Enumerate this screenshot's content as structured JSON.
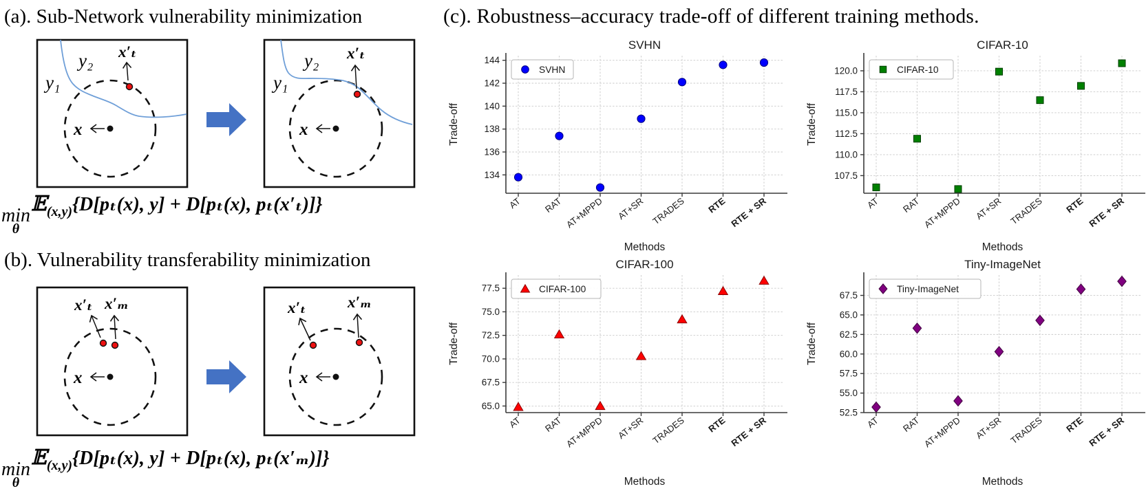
{
  "panel_a": {
    "title": "(a). Sub-Network vulnerability minimization",
    "box1": {
      "y2": "y₂",
      "y1": "y₁",
      "xt": "x′ₜ",
      "x": "x"
    },
    "box2": {
      "y2": "y₂",
      "y1": "y₁",
      "xt": "x′ₜ",
      "x": "x"
    },
    "formula": {
      "min": "min",
      "theta": "θ",
      "expect": "𝔼",
      "expect_sub": "(x,y)",
      "body": "{D[pₜ(x), y] + D[pₜ(x), pₜ(x′ₜ)]}"
    }
  },
  "panel_b": {
    "title": "(b). Vulnerability transferability  minimization",
    "box1": {
      "xt": "x′ₜ",
      "xm": "x′ₘ",
      "x": "x"
    },
    "box2": {
      "xt": "x′ₜ",
      "xm": "x′ₘ",
      "x": "x"
    },
    "formula": {
      "min": "min",
      "theta": "θ",
      "expect": "𝔼",
      "expect_sub": "(x,y)",
      "body": "{D[pₜ(x), y] + D[pₜ(x), pₜ(x′ₘ)]}"
    }
  },
  "panel_c": {
    "title": "(c). Robustness–accuracy trade-off of different training methods.",
    "xlabel": "Methods",
    "ylabel": "Trade-off"
  },
  "chart_data": [
    {
      "type": "scatter",
      "title": "SVHN",
      "legend": "SVHN",
      "marker": "circle",
      "color": "#0000ff",
      "edge_color": "#000080",
      "xlabel": "Methods",
      "ylabel": "Trade-off",
      "categories": [
        "AT",
        "RAT",
        "AT+MPPD",
        "AT+SR",
        "TRADES",
        "RTE",
        "RTE + SR"
      ],
      "bold_categories": [
        "RTE",
        "RTE + SR"
      ],
      "values": [
        133.8,
        137.4,
        132.9,
        138.9,
        142.1,
        143.6,
        143.8
      ],
      "ytick_labels": [
        "134",
        "136",
        "138",
        "140",
        "142",
        "144"
      ],
      "ylim": [
        132.4,
        144.4
      ],
      "grid": true,
      "legend_position": "upper left"
    },
    {
      "type": "scatter",
      "title": "CIFAR-10",
      "legend": "CIFAR-10",
      "marker": "square",
      "color": "#008000",
      "edge_color": "#003c00",
      "xlabel": "Methods",
      "ylabel": "Trade-off",
      "categories": [
        "AT",
        "RAT",
        "AT+MPPD",
        "AT+SR",
        "TRADES",
        "RTE",
        "RTE + SR"
      ],
      "bold_categories": [
        "RTE",
        "RTE + SR"
      ],
      "values": [
        106.1,
        111.9,
        105.9,
        119.9,
        116.5,
        118.2,
        120.9
      ],
      "ytick_labels": [
        "107.5",
        "110.0",
        "112.5",
        "115.0",
        "117.5",
        "120.0"
      ],
      "ylim": [
        105.4,
        121.8
      ],
      "grid": true,
      "legend_position": "upper left"
    },
    {
      "type": "scatter",
      "title": "CIFAR-100",
      "legend": "CIFAR-100",
      "marker": "triangle",
      "color": "#ff0000",
      "edge_color": "#8b0000",
      "xlabel": "Methods",
      "ylabel": "Trade-off",
      "categories": [
        "AT",
        "RAT",
        "AT+MPPD",
        "AT+SR",
        "TRADES",
        "RTE",
        "RTE + SR"
      ],
      "bold_categories": [
        "RTE",
        "RTE + SR"
      ],
      "values": [
        64.9,
        72.6,
        65.0,
        70.3,
        74.2,
        77.2,
        78.3
      ],
      "ytick_labels": [
        "65.0",
        "67.5",
        "70.0",
        "72.5",
        "75.0",
        "77.5"
      ],
      "ylim": [
        64.3,
        78.9
      ],
      "grid": true,
      "legend_position": "upper left"
    },
    {
      "type": "scatter",
      "title": "Tiny-ImageNet",
      "legend": "Tiny-ImageNet",
      "marker": "diamond",
      "color": "#800080",
      "edge_color": "#40003f",
      "xlabel": "Methods",
      "ylabel": "Trade-off",
      "categories": [
        "AT",
        "RAT",
        "AT+MPPD",
        "AT+SR",
        "TRADES",
        "RTE",
        "RTE + SR"
      ],
      "bold_categories": [
        "RTE",
        "RTE + SR"
      ],
      "values": [
        53.2,
        63.3,
        54.0,
        60.3,
        64.3,
        68.3,
        69.3
      ],
      "ytick_labels": [
        "52.5",
        "55.0",
        "57.5",
        "60.0",
        "62.5",
        "65.0",
        "67.5"
      ],
      "ylim": [
        52.5,
        70.1
      ],
      "grid": true,
      "legend_position": "upper left"
    }
  ]
}
